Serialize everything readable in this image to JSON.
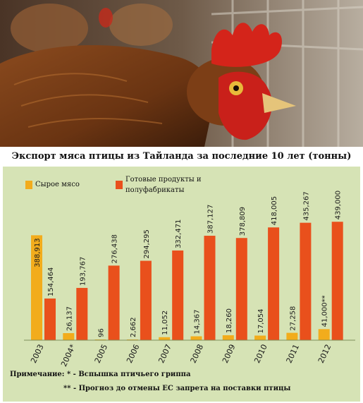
{
  "title": "Экспорт мяса птицы из Тайланда за последние 10 лет (тонны)",
  "legend": {
    "raw": "Сырое мясо",
    "processed_line1": "Готовые продукты и",
    "processed_line2": "полуфабрикаты"
  },
  "notes": {
    "line1": "Примечание: * - Вспышка птичьего гриппа",
    "line2": "** - Прогноз до отмены ЕС запрета на поставки птицы"
  },
  "colors": {
    "raw": "#f2ac1c",
    "processed": "#e9501c",
    "panel": "#d6e3b5"
  },
  "chart_data": {
    "type": "bar",
    "title": "Экспорт мяса птицы из Тайланда за последние 10 лет (тонны)",
    "categories": [
      "2003",
      "2004*",
      "2005",
      "2006",
      "2007",
      "2008",
      "2009",
      "2010",
      "2011",
      "2012"
    ],
    "series": [
      {
        "name": "Сырое мясо",
        "values": [
          388913,
          26137,
          96,
          2662,
          11052,
          14367,
          18260,
          17054,
          27258,
          41000
        ],
        "labels": [
          "388,913",
          "26,137",
          "96",
          "2,662",
          "11,052",
          "14,367",
          "18,260",
          "17,054",
          "27,258",
          "41,000**"
        ]
      },
      {
        "name": "Готовые продукты и полуфабрикаты",
        "values": [
          154464,
          193767,
          276438,
          294295,
          332471,
          387127,
          378809,
          418005,
          435267,
          439000
        ],
        "labels": [
          "154,464",
          "193,767",
          "276,438",
          "294,295",
          "332,471",
          "387,127",
          "378,809",
          "418,005",
          "435,267",
          "439,000"
        ]
      }
    ],
    "ylim": [
      0,
      450000
    ],
    "xlabel": "",
    "ylabel": "",
    "grid": false,
    "legend": "top-left"
  }
}
